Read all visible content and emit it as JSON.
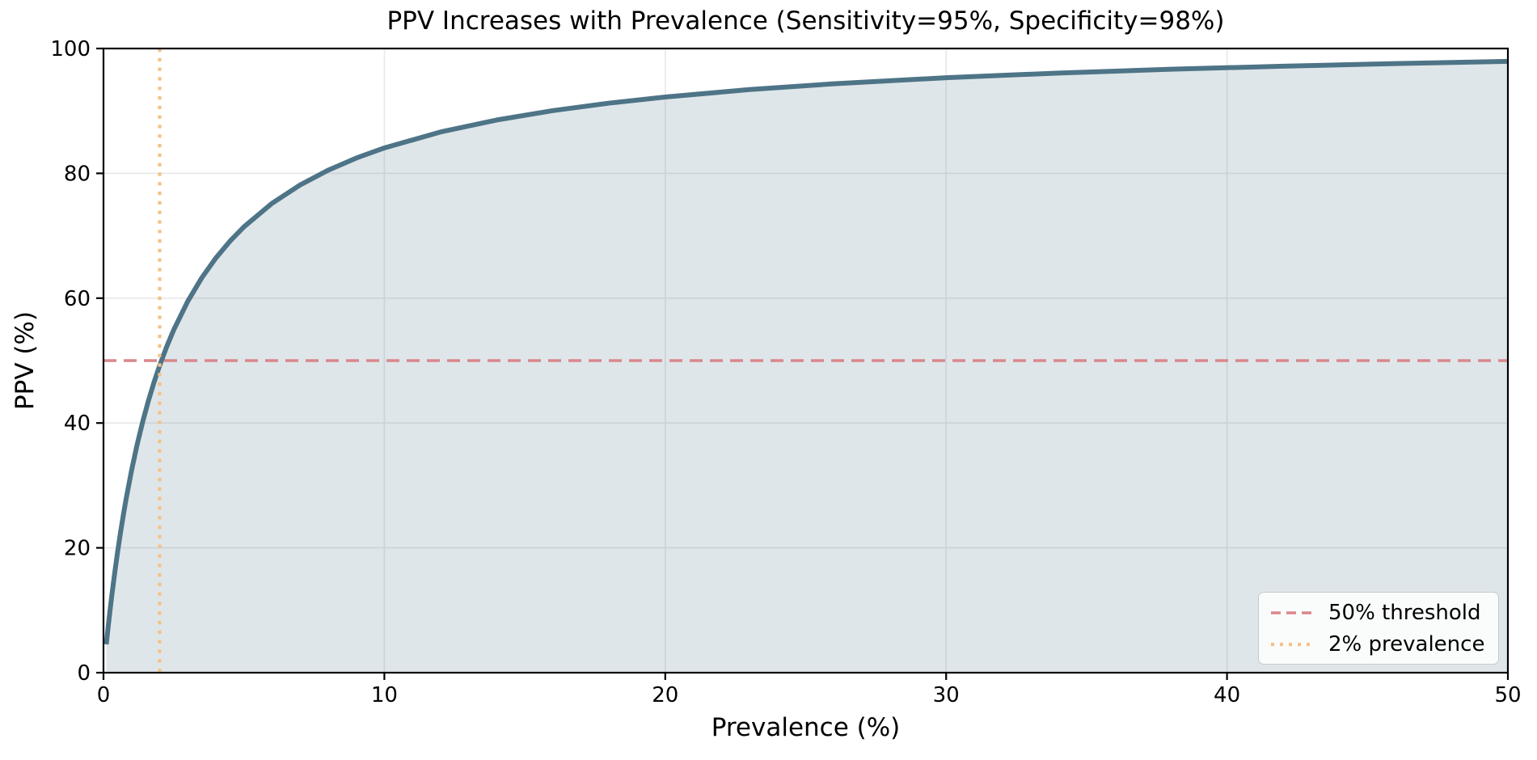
{
  "chart_data": {
    "type": "line",
    "title": "PPV Increases with Prevalence (Sensitivity=95%, Specificity=98%)",
    "xlabel": "Prevalence (%)",
    "ylabel": "PPV (%)",
    "xlim": [
      0,
      50
    ],
    "ylim": [
      0,
      100
    ],
    "x_ticks": [
      0,
      10,
      20,
      30,
      40,
      50
    ],
    "y_ticks": [
      0,
      20,
      40,
      60,
      80,
      100
    ],
    "grid": true,
    "legend_position": "lower right",
    "series": [
      {
        "name": "ppv-curve",
        "type": "line",
        "color": "#4e7487",
        "fill_under": true,
        "fill_color": "rgba(78,116,135,0.18)",
        "x": [
          0.1,
          0.15,
          0.2,
          0.25,
          0.3,
          0.4,
          0.5,
          0.6,
          0.7,
          0.8,
          1.0,
          1.2,
          1.4,
          1.6,
          1.8,
          2.0,
          2.25,
          2.5,
          3,
          3.5,
          4,
          4.5,
          5,
          6,
          7,
          8,
          9,
          10,
          12,
          14,
          16,
          18,
          20,
          23,
          26,
          30,
          34,
          38,
          42,
          46,
          50
        ],
        "y": [
          4.54,
          6.66,
          8.69,
          10.64,
          12.51,
          16.02,
          19.27,
          22.28,
          25.08,
          27.7,
          32.42,
          36.59,
          40.28,
          43.58,
          46.54,
          49.22,
          52.23,
          54.91,
          59.5,
          63.27,
          66.43,
          69.12,
          71.43,
          75.2,
          78.14,
          80.51,
          82.45,
          84.07,
          86.63,
          88.55,
          90.05,
          91.25,
          92.23,
          93.42,
          94.35,
          95.32,
          96.07,
          96.68,
          97.17,
          97.59,
          97.94
        ]
      },
      {
        "name": "50% threshold",
        "type": "hline",
        "y": 50,
        "linestyle": "dashed",
        "color": "#d9878b"
      },
      {
        "name": "2% prevalence",
        "type": "vline",
        "x": 2,
        "linestyle": "dotted",
        "color": "#f5c186"
      }
    ],
    "legend": {
      "items": [
        {
          "label": "50% threshold",
          "linestyle": "dashed",
          "color": "#d9878b"
        },
        {
          "label": "2% prevalence",
          "linestyle": "dotted",
          "color": "#f5c186"
        }
      ]
    },
    "style": {
      "grid_color": "#e8e8e8",
      "spine_color": "#000000",
      "text_color": "#000000",
      "background": "#ffffff"
    }
  }
}
